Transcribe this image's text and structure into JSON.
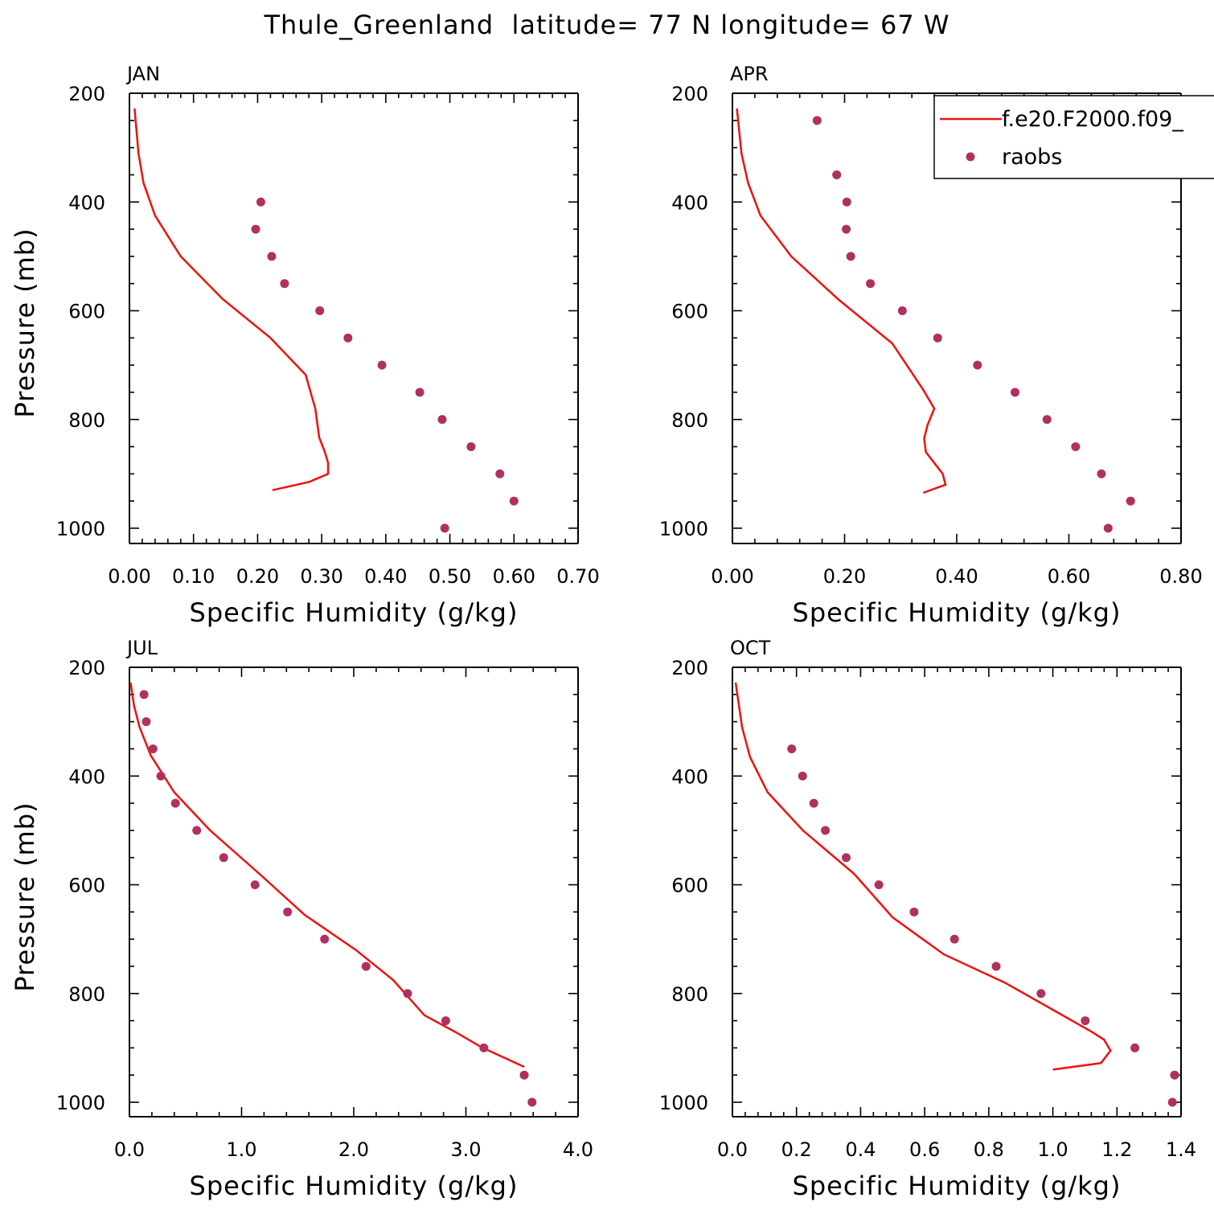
{
  "figure": {
    "title": "Thule_Greenland  latitude= 77 N longitude= 67 W"
  },
  "legend": {
    "model_label": "f.e20.F2000.f09_",
    "obs_label": "raobs"
  },
  "colors": {
    "model_line": "#ee1111",
    "obs_marker": "#b03060",
    "axis": "#000000"
  },
  "chart_data": [
    {
      "type": "line",
      "panel_label": "JAN",
      "xlabel": "Specific Humidity (g/kg)",
      "ylabel": "Pressure (mb)",
      "xlim": [
        0,
        0.7
      ],
      "ylim": [
        1000,
        200
      ],
      "xticks": [
        "0.00",
        "0.10",
        "0.20",
        "0.30",
        "0.40",
        "0.50",
        "0.60",
        "0.70"
      ],
      "yticks": [
        "200",
        "400",
        "600",
        "800",
        "1000"
      ],
      "series": [
        {
          "kind": "line",
          "x": [
            0.223,
            0.28,
            0.31,
            0.31,
            0.305,
            0.296,
            0.29,
            0.275,
            0.22,
            0.145,
            0.08,
            0.04,
            0.022,
            0.014,
            0.008
          ],
          "y": [
            930,
            915,
            900,
            880,
            860,
            833,
            780,
            718,
            650,
            578,
            500,
            425,
            365,
            310,
            228
          ]
        },
        {
          "kind": "scatter",
          "x": [
            0.205,
            0.197,
            0.222,
            0.242,
            0.297,
            0.341,
            0.394,
            0.453,
            0.488,
            0.533,
            0.578,
            0.6,
            0.492
          ],
          "y": [
            400,
            450,
            500,
            550,
            600,
            650,
            700,
            750,
            800,
            850,
            900,
            950,
            1000
          ]
        }
      ]
    },
    {
      "type": "line",
      "panel_label": "APR",
      "xlabel": "Specific Humidity (g/kg)",
      "ylabel": "",
      "xlim": [
        0,
        0.8
      ],
      "ylim": [
        1000,
        200
      ],
      "xticks": [
        "0.00",
        "0.20",
        "0.40",
        "0.60",
        "0.80"
      ],
      "yticks": [
        "200",
        "400",
        "600",
        "800",
        "1000"
      ],
      "series": [
        {
          "kind": "line",
          "x": [
            0.34,
            0.38,
            0.375,
            0.36,
            0.345,
            0.342,
            0.348,
            0.36,
            0.34,
            0.285,
            0.19,
            0.105,
            0.05,
            0.028,
            0.016,
            0.008
          ],
          "y": [
            935,
            920,
            900,
            880,
            860,
            835,
            810,
            780,
            745,
            660,
            580,
            500,
            425,
            365,
            310,
            228
          ]
        },
        {
          "kind": "scatter",
          "x": [
            0.151,
            0.186,
            0.204,
            0.203,
            0.211,
            0.246,
            0.303,
            0.366,
            0.437,
            0.504,
            0.561,
            0.612,
            0.658,
            0.71,
            0.67
          ],
          "y": [
            250,
            350,
            400,
            450,
            500,
            550,
            600,
            650,
            700,
            750,
            800,
            850,
            900,
            950,
            1000
          ]
        }
      ]
    },
    {
      "type": "line",
      "panel_label": "JUL",
      "xlabel": "Specific Humidity (g/kg)",
      "ylabel": "Pressure (mb)",
      "xlim": [
        0,
        4.0
      ],
      "ylim": [
        1000,
        200
      ],
      "xticks": [
        "0.0",
        "1.0",
        "2.0",
        "3.0",
        "4.0"
      ],
      "yticks": [
        "200",
        "400",
        "600",
        "800",
        "1000"
      ],
      "series": [
        {
          "kind": "line",
          "x": [
            3.52,
            3.15,
            2.9,
            2.63,
            2.35,
            2.02,
            1.56,
            1.16,
            0.72,
            0.4,
            0.19,
            0.09,
            0.04,
            0.01
          ],
          "y": [
            935,
            900,
            870,
            840,
            775,
            720,
            655,
            580,
            500,
            430,
            362,
            310,
            270,
            228
          ]
        },
        {
          "kind": "scatter",
          "x": [
            0.13,
            0.15,
            0.21,
            0.28,
            0.41,
            0.6,
            0.84,
            1.12,
            1.41,
            1.74,
            2.11,
            2.48,
            2.82,
            3.16,
            3.52,
            3.59
          ],
          "y": [
            250,
            300,
            350,
            400,
            450,
            500,
            550,
            600,
            650,
            700,
            750,
            800,
            850,
            900,
            950,
            1000
          ]
        }
      ]
    },
    {
      "type": "line",
      "panel_label": "OCT",
      "xlabel": "Specific Humidity (g/kg)",
      "ylabel": "",
      "xlim": [
        0,
        1.4
      ],
      "ylim": [
        1000,
        200
      ],
      "xticks": [
        "0.0",
        "0.2",
        "0.4",
        "0.6",
        "0.8",
        "1.0",
        "1.2",
        "1.4"
      ],
      "yticks": [
        "200",
        "400",
        "600",
        "800",
        "1000"
      ],
      "series": [
        {
          "kind": "line",
          "x": [
            1.0,
            1.15,
            1.18,
            1.16,
            1.12,
            1.0,
            0.85,
            0.66,
            0.5,
            0.38,
            0.22,
            0.11,
            0.055,
            0.03,
            0.01
          ],
          "y": [
            940,
            928,
            905,
            885,
            870,
            830,
            780,
            728,
            660,
            580,
            500,
            430,
            365,
            310,
            228
          ]
        },
        {
          "kind": "scatter",
          "x": [
            0.185,
            0.219,
            0.254,
            0.29,
            0.355,
            0.457,
            0.567,
            0.693,
            0.823,
            0.963,
            1.101,
            1.256,
            1.38,
            1.373
          ],
          "y": [
            350,
            400,
            450,
            500,
            550,
            600,
            650,
            700,
            750,
            800,
            850,
            900,
            950,
            1000
          ]
        }
      ]
    }
  ]
}
